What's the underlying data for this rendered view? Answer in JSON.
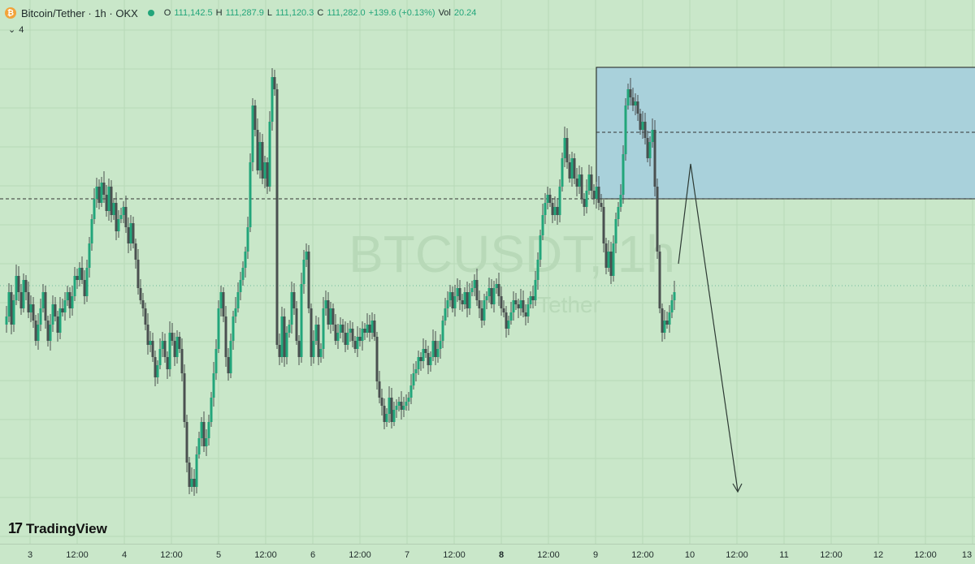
{
  "header": {
    "symbol_title": "Bitcoin/Tether · 1h · OKX",
    "ohlc": {
      "o_key": "O",
      "o_val": "111,142.5",
      "h_key": "H",
      "h_val": "111,287.9",
      "l_key": "L",
      "l_val": "111,120.3",
      "c_key": "C",
      "c_val": "111,282.0",
      "change": "+139.6 (+0.13%)",
      "vol_key": "Vol",
      "vol_val": "20.24"
    },
    "indicator_count": "4"
  },
  "watermark": {
    "symbol": "BTCUSDT, 1h",
    "name": "Tether"
  },
  "branding": {
    "logo_text": "TradingView",
    "logo_mark": "17"
  },
  "colors": {
    "background": "#c9e7c9",
    "candle": "#4a5050",
    "up": "#22a57a",
    "zone_fill": "#a9d1db",
    "zone_border": "#1a1a1a"
  },
  "xaxis": {
    "labels": [
      {
        "text": "3",
        "bold": false
      },
      {
        "text": "12:00",
        "bold": false
      },
      {
        "text": "4",
        "bold": false
      },
      {
        "text": "12:00",
        "bold": false
      },
      {
        "text": "5",
        "bold": false
      },
      {
        "text": "12:00",
        "bold": false
      },
      {
        "text": "6",
        "bold": false
      },
      {
        "text": "12:00",
        "bold": false
      },
      {
        "text": "7",
        "bold": false
      },
      {
        "text": "12:00",
        "bold": false
      },
      {
        "text": "8",
        "bold": true
      },
      {
        "text": "12:00",
        "bold": false
      },
      {
        "text": "9",
        "bold": false
      },
      {
        "text": "12:00",
        "bold": false
      },
      {
        "text": "10",
        "bold": false
      },
      {
        "text": "12:00",
        "bold": false
      },
      {
        "text": "11",
        "bold": false
      },
      {
        "text": "12:00",
        "bold": false
      },
      {
        "text": "12",
        "bold": false
      },
      {
        "text": "12:00",
        "bold": false
      },
      {
        "text": "13",
        "bold": false
      }
    ]
  },
  "chart_data": {
    "type": "candlestick",
    "interval": "1h",
    "grid": true,
    "close_path": [
      [
        0,
        400
      ],
      [
        3,
        390
      ],
      [
        6,
        360
      ],
      [
        9,
        400
      ],
      [
        12,
        370
      ],
      [
        15,
        340
      ],
      [
        18,
        360
      ],
      [
        21,
        380
      ],
      [
        24,
        345
      ],
      [
        27,
        360
      ],
      [
        30,
        385
      ],
      [
        33,
        375
      ],
      [
        36,
        395
      ],
      [
        39,
        420
      ],
      [
        42,
        400
      ],
      [
        45,
        380
      ],
      [
        48,
        360
      ],
      [
        51,
        395
      ],
      [
        54,
        420
      ],
      [
        57,
        400
      ],
      [
        60,
        375
      ],
      [
        63,
        390
      ],
      [
        66,
        410
      ],
      [
        69,
        380
      ],
      [
        72,
        385
      ],
      [
        75,
        370
      ],
      [
        78,
        360
      ],
      [
        81,
        380
      ],
      [
        84,
        365
      ],
      [
        87,
        340
      ],
      [
        90,
        345
      ],
      [
        93,
        330
      ],
      [
        96,
        345
      ],
      [
        99,
        365
      ],
      [
        102,
        330
      ],
      [
        105,
        300
      ],
      [
        108,
        270
      ],
      [
        111,
        245
      ],
      [
        114,
        230
      ],
      [
        117,
        250
      ],
      [
        120,
        225
      ],
      [
        123,
        240
      ],
      [
        126,
        260
      ],
      [
        129,
        230
      ],
      [
        132,
        265
      ],
      [
        135,
        250
      ],
      [
        138,
        285
      ],
      [
        141,
        270
      ],
      [
        144,
        265
      ],
      [
        147,
        255
      ],
      [
        150,
        280
      ],
      [
        153,
        300
      ],
      [
        156,
        275
      ],
      [
        159,
        300
      ],
      [
        162,
        320
      ],
      [
        165,
        355
      ],
      [
        168,
        370
      ],
      [
        171,
        380
      ],
      [
        174,
        400
      ],
      [
        177,
        425
      ],
      [
        180,
        420
      ],
      [
        183,
        440
      ],
      [
        186,
        465
      ],
      [
        189,
        450
      ],
      [
        192,
        430
      ],
      [
        195,
        420
      ],
      [
        198,
        440
      ],
      [
        201,
        455
      ],
      [
        204,
        410
      ],
      [
        207,
        420
      ],
      [
        210,
        440
      ],
      [
        213,
        415
      ],
      [
        216,
        430
      ],
      [
        219,
        460
      ],
      [
        222,
        520
      ],
      [
        225,
        570
      ],
      [
        228,
        600
      ],
      [
        231,
        590
      ],
      [
        234,
        600
      ],
      [
        237,
        560
      ],
      [
        240,
        540
      ],
      [
        243,
        520
      ],
      [
        246,
        550
      ],
      [
        249,
        540
      ],
      [
        252,
        520
      ],
      [
        255,
        490
      ],
      [
        258,
        460
      ],
      [
        261,
        430
      ],
      [
        264,
        380
      ],
      [
        267,
        360
      ],
      [
        270,
        390
      ],
      [
        273,
        440
      ],
      [
        276,
        460
      ],
      [
        279,
        420
      ],
      [
        282,
        390
      ],
      [
        285,
        380
      ],
      [
        288,
        360
      ],
      [
        291,
        345
      ],
      [
        294,
        330
      ],
      [
        297,
        310
      ],
      [
        300,
        280
      ],
      [
        303,
        200
      ],
      [
        306,
        130
      ],
      [
        309,
        160
      ],
      [
        312,
        210
      ],
      [
        315,
        175
      ],
      [
        318,
        220
      ],
      [
        321,
        200
      ],
      [
        324,
        230
      ],
      [
        327,
        150
      ],
      [
        330,
        95
      ],
      [
        333,
        110
      ],
      [
        336,
        425
      ],
      [
        339,
        440
      ],
      [
        342,
        390
      ],
      [
        345,
        440
      ],
      [
        348,
        410
      ],
      [
        351,
        400
      ],
      [
        354,
        360
      ],
      [
        357,
        380
      ],
      [
        360,
        420
      ],
      [
        363,
        440
      ],
      [
        366,
        350
      ],
      [
        369,
        320
      ],
      [
        372,
        310
      ],
      [
        375,
        380
      ],
      [
        378,
        440
      ],
      [
        381,
        420
      ],
      [
        384,
        400
      ],
      [
        387,
        440
      ],
      [
        390,
        430
      ],
      [
        393,
        380
      ],
      [
        396,
        370
      ],
      [
        399,
        400
      ],
      [
        402,
        380
      ],
      [
        405,
        400
      ],
      [
        408,
        420
      ],
      [
        411,
        410
      ],
      [
        414,
        400
      ],
      [
        417,
        410
      ],
      [
        420,
        425
      ],
      [
        423,
        410
      ],
      [
        426,
        405
      ],
      [
        429,
        420
      ],
      [
        432,
        430
      ],
      [
        435,
        415
      ],
      [
        438,
        420
      ],
      [
        441,
        405
      ],
      [
        444,
        410
      ],
      [
        447,
        400
      ],
      [
        450,
        410
      ],
      [
        453,
        395
      ],
      [
        456,
        415
      ],
      [
        459,
        470
      ],
      [
        462,
        490
      ],
      [
        465,
        500
      ],
      [
        468,
        520
      ],
      [
        471,
        510
      ],
      [
        474,
        490
      ],
      [
        477,
        520
      ],
      [
        480,
        505
      ],
      [
        483,
        500
      ],
      [
        486,
        495
      ],
      [
        489,
        505
      ],
      [
        492,
        500
      ],
      [
        495,
        495
      ],
      [
        498,
        490
      ],
      [
        501,
        475
      ],
      [
        504,
        460
      ],
      [
        507,
        455
      ],
      [
        510,
        440
      ],
      [
        513,
        445
      ],
      [
        516,
        430
      ],
      [
        519,
        435
      ],
      [
        522,
        450
      ],
      [
        525,
        440
      ],
      [
        528,
        420
      ],
      [
        531,
        440
      ],
      [
        534,
        430
      ],
      [
        537,
        420
      ],
      [
        540,
        395
      ],
      [
        543,
        380
      ],
      [
        546,
        370
      ],
      [
        549,
        360
      ],
      [
        552,
        380
      ],
      [
        555,
        365
      ],
      [
        558,
        355
      ],
      [
        561,
        370
      ],
      [
        564,
        375
      ],
      [
        567,
        360
      ],
      [
        570,
        380
      ],
      [
        573,
        360
      ],
      [
        576,
        355
      ],
      [
        579,
        345
      ],
      [
        582,
        370
      ],
      [
        585,
        380
      ],
      [
        588,
        395
      ],
      [
        591,
        370
      ],
      [
        594,
        365
      ],
      [
        597,
        355
      ],
      [
        600,
        375
      ],
      [
        603,
        355
      ],
      [
        606,
        350
      ],
      [
        609,
        365
      ],
      [
        612,
        380
      ],
      [
        615,
        385
      ],
      [
        618,
        405
      ],
      [
        621,
        395
      ],
      [
        624,
        385
      ],
      [
        627,
        370
      ],
      [
        630,
        375
      ],
      [
        633,
        380
      ],
      [
        636,
        370
      ],
      [
        639,
        385
      ],
      [
        642,
        390
      ],
      [
        645,
        375
      ],
      [
        648,
        365
      ],
      [
        651,
        370
      ],
      [
        654,
        345
      ],
      [
        657,
        320
      ],
      [
        660,
        290
      ],
      [
        663,
        265
      ],
      [
        666,
        250
      ],
      [
        669,
        240
      ],
      [
        672,
        250
      ],
      [
        675,
        265
      ],
      [
        678,
        255
      ],
      [
        681,
        265
      ],
      [
        684,
        230
      ],
      [
        687,
        195
      ],
      [
        690,
        170
      ],
      [
        693,
        200
      ],
      [
        696,
        220
      ],
      [
        699,
        195
      ],
      [
        702,
        220
      ],
      [
        705,
        230
      ],
      [
        708,
        215
      ],
      [
        711,
        245
      ],
      [
        714,
        255
      ],
      [
        717,
        235
      ],
      [
        720,
        215
      ],
      [
        723,
        235
      ],
      [
        726,
        245
      ],
      [
        729,
        230
      ],
      [
        732,
        250
      ],
      [
        735,
        255
      ],
      [
        738,
        300
      ],
      [
        741,
        330
      ],
      [
        744,
        310
      ],
      [
        747,
        340
      ],
      [
        750,
        300
      ],
      [
        753,
        270
      ],
      [
        756,
        255
      ],
      [
        759,
        240
      ],
      [
        762,
        190
      ],
      [
        765,
        130
      ],
      [
        768,
        110
      ],
      [
        771,
        120
      ],
      [
        774,
        130
      ],
      [
        777,
        125
      ],
      [
        780,
        140
      ],
      [
        783,
        160
      ],
      [
        786,
        150
      ],
      [
        789,
        170
      ],
      [
        792,
        195
      ],
      [
        795,
        175
      ],
      [
        798,
        160
      ],
      [
        801,
        230
      ],
      [
        804,
        310
      ],
      [
        807,
        380
      ],
      [
        810,
        410
      ],
      [
        813,
        395
      ],
      [
        816,
        400
      ],
      [
        819,
        385
      ],
      [
        822,
        370
      ],
      [
        825,
        360
      ]
    ],
    "zone": {
      "type": "rectangle",
      "description": "highlighted supply zone"
    }
  }
}
